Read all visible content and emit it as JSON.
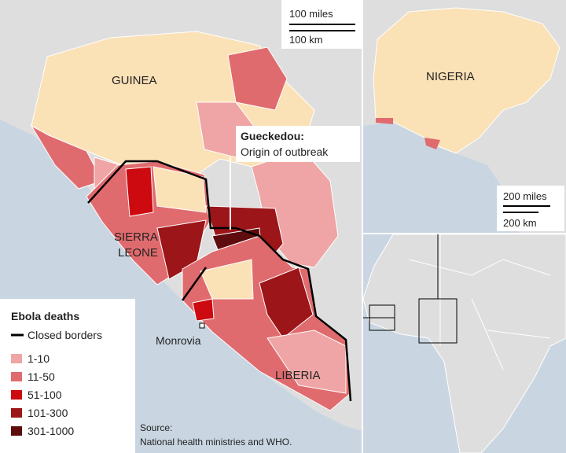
{
  "main_map": {
    "scale": {
      "miles": "100 miles",
      "km": "100 km"
    },
    "labels": {
      "guinea": "GUINEA",
      "sierra_leone": [
        "SIERRA",
        "LEONE"
      ],
      "liberia": "LIBERIA",
      "monrovia": "Monrovia"
    },
    "callout": {
      "title": "Gueckedou:",
      "text": "Origin of outbreak"
    }
  },
  "legend": {
    "title": "Ebola deaths",
    "closed_borders": "Closed borders",
    "items": [
      {
        "label": "1-10",
        "color": "#efa5a5"
      },
      {
        "label": "11-50",
        "color": "#e06b6e"
      },
      {
        "label": "51-100",
        "color": "#cc0a0f"
      },
      {
        "label": "101-300",
        "color": "#9c1518"
      },
      {
        "label": "301-1000",
        "color": "#5e0c0e"
      }
    ]
  },
  "source": [
    "Source:",
    "National health ministries and WHO."
  ],
  "nigeria_map": {
    "label": "NIGERIA",
    "scale": {
      "miles": "200 miles",
      "km": "200 km"
    }
  }
}
